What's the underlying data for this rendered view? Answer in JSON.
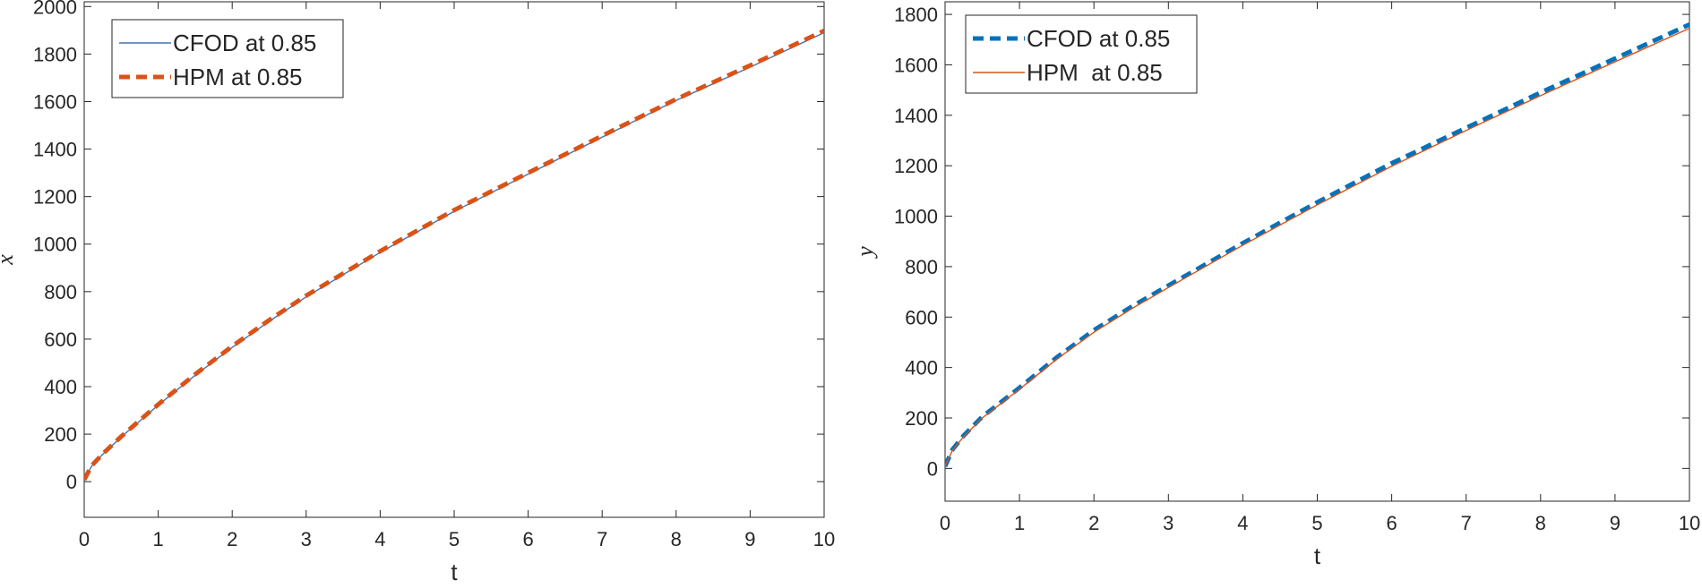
{
  "chart_data": [
    {
      "type": "line",
      "xlabel": "t",
      "ylabel": "x",
      "xlim": [
        0,
        10
      ],
      "ylim": [
        -150,
        2020
      ],
      "xticks": [
        "0",
        "1",
        "2",
        "3",
        "4",
        "5",
        "6",
        "7",
        "8",
        "9",
        "10"
      ],
      "yticks": [
        "0",
        "200",
        "400",
        "600",
        "800",
        "1000",
        "1200",
        "1400",
        "1600",
        "1800",
        "2000"
      ],
      "grid": false,
      "legend_position": "top-left",
      "x": [
        0,
        0.1,
        0.25,
        0.5,
        0.75,
        1,
        1.5,
        2,
        2.5,
        3,
        4,
        5,
        6,
        7,
        8,
        9,
        10
      ],
      "series": [
        {
          "name": "CFOD at 0.85",
          "style": "solid-thin",
          "color": "#4472b0",
          "values": [
            8,
            65,
            115,
            188,
            255,
            322,
            448,
            565,
            675,
            778,
            965,
            1138,
            1295,
            1450,
            1605,
            1745,
            1890
          ]
        },
        {
          "name": "HPM at 0.85",
          "style": "dashed-thick",
          "color": "#d95319",
          "values": [
            8,
            67,
            117,
            190,
            258,
            325,
            452,
            570,
            680,
            783,
            970,
            1143,
            1300,
            1456,
            1610,
            1752,
            1898
          ]
        }
      ]
    },
    {
      "type": "line",
      "xlabel": "t",
      "ylabel": "y",
      "xlim": [
        0,
        10
      ],
      "ylim": [
        -130,
        1850
      ],
      "xticks": [
        "0",
        "1",
        "2",
        "3",
        "4",
        "5",
        "6",
        "7",
        "8",
        "9",
        "10"
      ],
      "yticks": [
        "0",
        "200",
        "400",
        "600",
        "800",
        "1000",
        "1200",
        "1400",
        "1600",
        "1800"
      ],
      "grid": false,
      "legend_position": "top-left",
      "x": [
        0,
        0.1,
        0.25,
        0.5,
        0.75,
        1,
        1.5,
        2,
        2.5,
        3,
        4,
        5,
        6,
        7,
        8,
        9,
        10
      ],
      "series": [
        {
          "name": "CFOD at 0.85",
          "style": "dashed-thick",
          "color": "#0072bd",
          "values": [
            8,
            75,
            130,
            205,
            262,
            320,
            440,
            548,
            640,
            725,
            893,
            1055,
            1210,
            1350,
            1490,
            1625,
            1760
          ]
        },
        {
          "name": "HPM  at 0.85",
          "style": "solid-thin",
          "color": "#d95319",
          "values": [
            8,
            72,
            126,
            200,
            257,
            314,
            433,
            540,
            632,
            717,
            885,
            1045,
            1198,
            1340,
            1478,
            1612,
            1745
          ]
        }
      ]
    }
  ]
}
